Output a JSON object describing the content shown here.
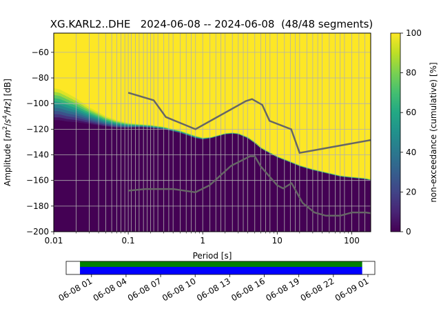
{
  "chart_data": {
    "type": "heatmap",
    "title": "XG.KARL2..DHE   2024-06-08 -- 2024-06-08  (48/48 segments)",
    "xlabel": "Period [s]",
    "ylabel_parts": [
      "Amplitude [",
      "m",
      "2",
      "/",
      "s",
      "4",
      "/",
      "Hz",
      "] [dB]"
    ],
    "x_scale": "log",
    "xlim": [
      0.01,
      180
    ],
    "ylim": [
      -200,
      -45
    ],
    "x_ticks": [
      {
        "value": 0.01,
        "label": "0.01"
      },
      {
        "value": 0.1,
        "label": "0.1"
      },
      {
        "value": 1,
        "label": "1"
      },
      {
        "value": 10,
        "label": "10"
      },
      {
        "value": 100,
        "label": "100"
      }
    ],
    "y_ticks": [
      {
        "value": -60,
        "label": "−60"
      },
      {
        "value": -80,
        "label": "−80"
      },
      {
        "value": -100,
        "label": "−100"
      },
      {
        "value": -120,
        "label": "−120"
      },
      {
        "value": -140,
        "label": "−140"
      },
      {
        "value": -160,
        "label": "−160"
      },
      {
        "value": -180,
        "label": "−180"
      },
      {
        "value": -200,
        "label": "−200"
      }
    ],
    "grid_periods": [
      0.02,
      0.03,
      0.04,
      0.05,
      0.06,
      0.07,
      0.08,
      0.09,
      0.1,
      0.11,
      0.125,
      0.14,
      0.16,
      0.18,
      0.2,
      0.22,
      0.25,
      0.3,
      0.35,
      0.4,
      0.5,
      0.6,
      0.7,
      0.8,
      1,
      1.25,
      1.5,
      1.75,
      2,
      2.5,
      3,
      3.5,
      4,
      5,
      6,
      7,
      8,
      10,
      12.5,
      15,
      17.5,
      20,
      25,
      30,
      35,
      40,
      50,
      60,
      70,
      80,
      100,
      125,
      150
    ],
    "grid": true,
    "colorbar": {
      "label": "non-exceedance (cumulative) [%]",
      "range": [
        0,
        100
      ],
      "ticks": [
        {
          "value": 0,
          "label": "0"
        },
        {
          "value": 20,
          "label": "20"
        },
        {
          "value": 40,
          "label": "40"
        },
        {
          "value": 60,
          "label": "60"
        },
        {
          "value": 80,
          "label": "80"
        },
        {
          "value": 100,
          "label": "100"
        }
      ]
    },
    "colors": {
      "viridis": [
        "#440154",
        "#482475",
        "#414487",
        "#355f8d",
        "#2a788e",
        "#21918c",
        "#22a884",
        "#44bf70",
        "#7ad151",
        "#bddf26",
        "#fde725"
      ],
      "low_fill": "#440154",
      "high_fill": "#fde725",
      "grid": "#b0b0b0",
      "noise_model": "#666666",
      "coverage_green": "#008000",
      "coverage_blue": "#0000ff"
    },
    "lower_boundary": {
      "period": [
        0.01,
        0.012,
        0.015,
        0.02,
        0.03,
        0.05,
        0.07,
        0.1,
        0.15,
        0.2,
        0.3,
        0.5,
        0.8,
        1,
        1.3,
        2,
        2.5,
        3,
        4,
        5,
        6,
        8,
        10,
        15,
        20,
        30,
        50,
        70,
        100,
        150,
        180
      ],
      "db": [
        -113,
        -113,
        -114,
        -114.5,
        -116,
        -118,
        -119,
        -119,
        -118.5,
        -119,
        -120,
        -123,
        -127,
        -128,
        -127,
        -124,
        -123.5,
        -124,
        -127,
        -131,
        -135,
        -139,
        -142,
        -146,
        -149,
        -152,
        -155,
        -157,
        -158,
        -159,
        -160
      ]
    },
    "upper_boundary": {
      "period": [
        0.01,
        0.012,
        0.015,
        0.02,
        0.03,
        0.05,
        0.07,
        0.1,
        0.15,
        0.2,
        0.3,
        0.5,
        0.8,
        1,
        1.3,
        2,
        2.5,
        3,
        4,
        5,
        6,
        8,
        10,
        15,
        20,
        30,
        50,
        70,
        100,
        150,
        180
      ],
      "db": [
        -88,
        -89,
        -92,
        -96,
        -103,
        -110,
        -113,
        -115,
        -116,
        -116.5,
        -118,
        -121,
        -125,
        -126.5,
        -126,
        -123,
        -122.5,
        -123,
        -126,
        -130,
        -134,
        -138,
        -141,
        -145,
        -148,
        -151,
        -154,
        -156,
        -157,
        -158,
        -159
      ]
    },
    "noise_models": [
      {
        "name": "high",
        "period": [
          0.1,
          0.22,
          0.32,
          0.8,
          3.8,
          4.6,
          6.3,
          7.9,
          15.4,
          20,
          180
        ],
        "db": [
          -91.5,
          -97.4,
          -110.5,
          -120,
          -98,
          -96.5,
          -101,
          -113.5,
          -120,
          -138.5,
          -128.5
        ]
      },
      {
        "name": "low",
        "period": [
          0.1,
          0.17,
          0.4,
          0.8,
          1.24,
          2.4,
          4.3,
          5,
          6,
          10,
          12,
          15.6,
          21.9,
          31.6,
          45,
          70,
          101,
          154,
          180
        ],
        "db": [
          -168,
          -166.7,
          -166.7,
          -169.2,
          -163.7,
          -148.6,
          -141.1,
          -141.1,
          -149,
          -163.8,
          -166.2,
          -162.1,
          -177.5,
          -185,
          -187.5,
          -187.5,
          -185,
          -185,
          -185.5
        ]
      }
    ],
    "coverage": {
      "ticks": [
        {
          "hours": 1,
          "label": "06-08 01"
        },
        {
          "hours": 4,
          "label": "06-08 04"
        },
        {
          "hours": 7,
          "label": "06-08 07"
        },
        {
          "hours": 10,
          "label": "06-08 10"
        },
        {
          "hours": 13,
          "label": "06-08 13"
        },
        {
          "hours": 16,
          "label": "06-08 16"
        },
        {
          "hours": 19,
          "label": "06-08 19"
        },
        {
          "hours": 22,
          "label": "06-08 22"
        },
        {
          "hours": 25,
          "label": "06-09 01"
        }
      ],
      "range_hours": [
        -1.2,
        25.6
      ],
      "data_hours": [
        0,
        24.5
      ]
    }
  }
}
